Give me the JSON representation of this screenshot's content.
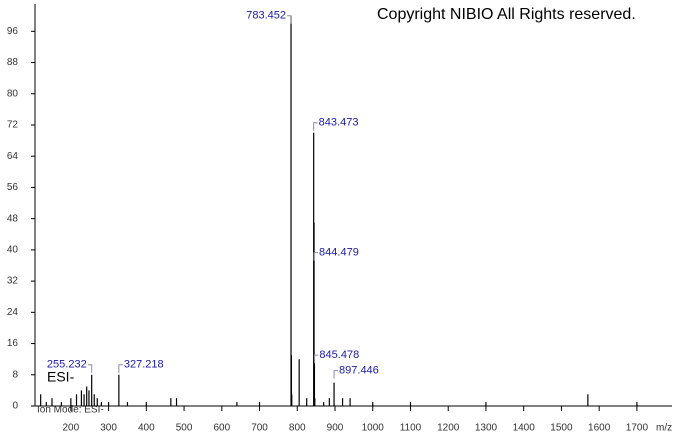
{
  "chart_data": {
    "type": "stem",
    "copyright": "Copyright NIBIO All Rights reserved.",
    "annotation": "ESI-",
    "footer": "Ion Mode: ESI-",
    "xlabel": "m/z",
    "xlim": [
      105,
      1793
    ],
    "ylim": [
      0,
      103
    ],
    "xticks": [
      200,
      300,
      400,
      500,
      600,
      700,
      800,
      900,
      1000,
      1100,
      1200,
      1300,
      1400,
      1500,
      1600,
      1700
    ],
    "yticks": [
      0,
      8,
      16,
      24,
      32,
      40,
      48,
      56,
      64,
      72,
      80,
      88,
      96
    ],
    "peaks": {
      "x": [
        255.232,
        327.218,
        783.452,
        843.473,
        844.479,
        845.478,
        897.446
      ],
      "values": [
        8,
        8,
        100,
        70,
        47,
        12,
        6
      ]
    },
    "minor_peaks": {
      "x": [
        120,
        135,
        150,
        175,
        200,
        215,
        228,
        235,
        242,
        248,
        262,
        270,
        281,
        300,
        350,
        400,
        465,
        480,
        640,
        700,
        784.45,
        785.46,
        805,
        825,
        846.48,
        870,
        885,
        920,
        940,
        1000,
        1100,
        1300,
        1570,
        1700
      ],
      "values": [
        3,
        1,
        2,
        1,
        2,
        3,
        4,
        3,
        5,
        4,
        3,
        2,
        1,
        1,
        1,
        1,
        2,
        2,
        1,
        1,
        13,
        3,
        12,
        2,
        2,
        1,
        2,
        2,
        2,
        1,
        1,
        1,
        3,
        1
      ]
    }
  }
}
